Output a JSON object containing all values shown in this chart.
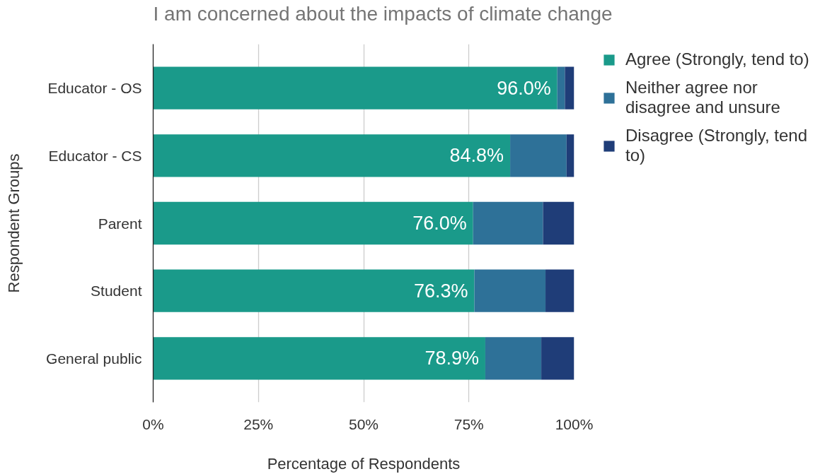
{
  "chart_data": {
    "type": "bar",
    "orientation": "horizontal",
    "stacked": true,
    "title": "I am concerned about the impacts of climate change",
    "xlabel": "Percentage of Respondents",
    "ylabel": "Respondent Groups",
    "categories": [
      "Educator - OS",
      "Educator - CS",
      "Parent",
      "Student",
      "General public"
    ],
    "series": [
      {
        "name": "Agree (Strongly, tend to)",
        "color": "#1a9a8a",
        "values": [
          96.0,
          84.8,
          76.0,
          76.3,
          78.9
        ],
        "value_labels": [
          "96.0%",
          "84.8%",
          "76.0%",
          "76.3%",
          "78.9%"
        ]
      },
      {
        "name": "Neither agree nor disagree and unsure",
        "color": "#2e7198",
        "values": [
          1.8,
          13.4,
          16.6,
          16.9,
          13.3
        ]
      },
      {
        "name": "Disagree (Strongly, tend to)",
        "color": "#1f3d78",
        "values": [
          2.2,
          1.8,
          7.4,
          6.8,
          7.8
        ]
      }
    ],
    "xlim": [
      0,
      100
    ],
    "xticks": [
      {
        "value": 0,
        "label": "0%"
      },
      {
        "value": 25,
        "label": "25%"
      },
      {
        "value": 50,
        "label": "50%"
      },
      {
        "value": 75,
        "label": "75%"
      },
      {
        "value": 100,
        "label": "100%"
      }
    ],
    "grid": "x",
    "legend": "top right"
  }
}
